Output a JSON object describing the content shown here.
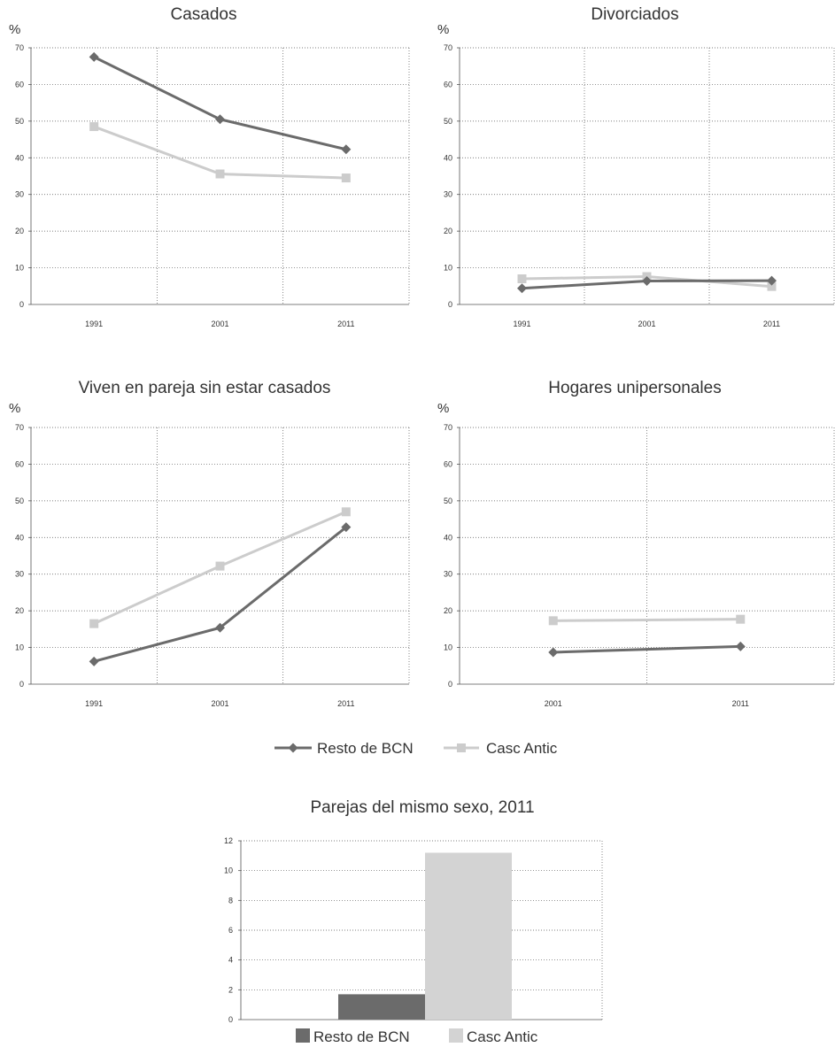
{
  "legend": [
    {
      "name": "Resto de BCN",
      "color": "#6b6b6b",
      "marker": "diamond"
    },
    {
      "name": "Casc Antic",
      "color": "#cccccc",
      "marker": "square"
    }
  ],
  "chart_data": [
    {
      "type": "line",
      "title": "Casados",
      "ylabel": "%",
      "x": [
        "1991",
        "2001",
        "2011"
      ],
      "ylim": [
        0,
        70
      ],
      "yticks": [
        "0",
        "10",
        "20",
        "30",
        "40",
        "50",
        "60",
        "70"
      ],
      "grid": true,
      "series": [
        {
          "name": "Resto de BCN",
          "values": [
            67.5,
            50.5,
            42.3
          ]
        },
        {
          "name": "Casc Antic",
          "values": [
            48.5,
            35.6,
            34.5
          ]
        }
      ]
    },
    {
      "type": "line",
      "title": "Divorciados",
      "ylabel": "%",
      "x": [
        "1991",
        "2001",
        "2011"
      ],
      "ylim": [
        0,
        70
      ],
      "yticks": [
        "0",
        "10",
        "20",
        "30",
        "40",
        "50",
        "60",
        "70"
      ],
      "grid": true,
      "series": [
        {
          "name": "Resto de BCN",
          "values": [
            4.4,
            6.4,
            6.5
          ]
        },
        {
          "name": "Casc Antic",
          "values": [
            7.0,
            7.6,
            4.9
          ]
        }
      ]
    },
    {
      "type": "line",
      "title": "Viven en pareja sin estar casados",
      "ylabel": "%",
      "x": [
        "1991",
        "2001",
        "2011"
      ],
      "ylim": [
        0,
        70
      ],
      "yticks": [
        "0",
        "10",
        "20",
        "30",
        "40",
        "50",
        "60",
        "70"
      ],
      "grid": true,
      "series": [
        {
          "name": "Resto de BCN",
          "values": [
            6.2,
            15.4,
            42.8
          ]
        },
        {
          "name": "Casc Antic",
          "values": [
            16.5,
            32.2,
            47.0
          ]
        }
      ]
    },
    {
      "type": "line",
      "title": "Hogares unipersonales",
      "ylabel": "%",
      "x": [
        "2001",
        "2011"
      ],
      "ylim": [
        0,
        70
      ],
      "yticks": [
        "0",
        "10",
        "20",
        "30",
        "40",
        "50",
        "60",
        "70"
      ],
      "grid": true,
      "series": [
        {
          "name": "Resto de BCN",
          "values": [
            8.7,
            10.3
          ]
        },
        {
          "name": "Casc Antic",
          "values": [
            17.3,
            17.7
          ]
        }
      ]
    },
    {
      "type": "bar",
      "title": "Parejas del mismo sexo, 2011",
      "ylabel": "",
      "ylim": [
        0,
        12
      ],
      "yticks": [
        "0",
        "2",
        "4",
        "6",
        "8",
        "10",
        "12"
      ],
      "grid": true,
      "series": [
        {
          "name": "Resto de BCN",
          "values": [
            1.7
          ]
        },
        {
          "name": "Casc Antic",
          "values": [
            11.2
          ]
        }
      ]
    }
  ]
}
